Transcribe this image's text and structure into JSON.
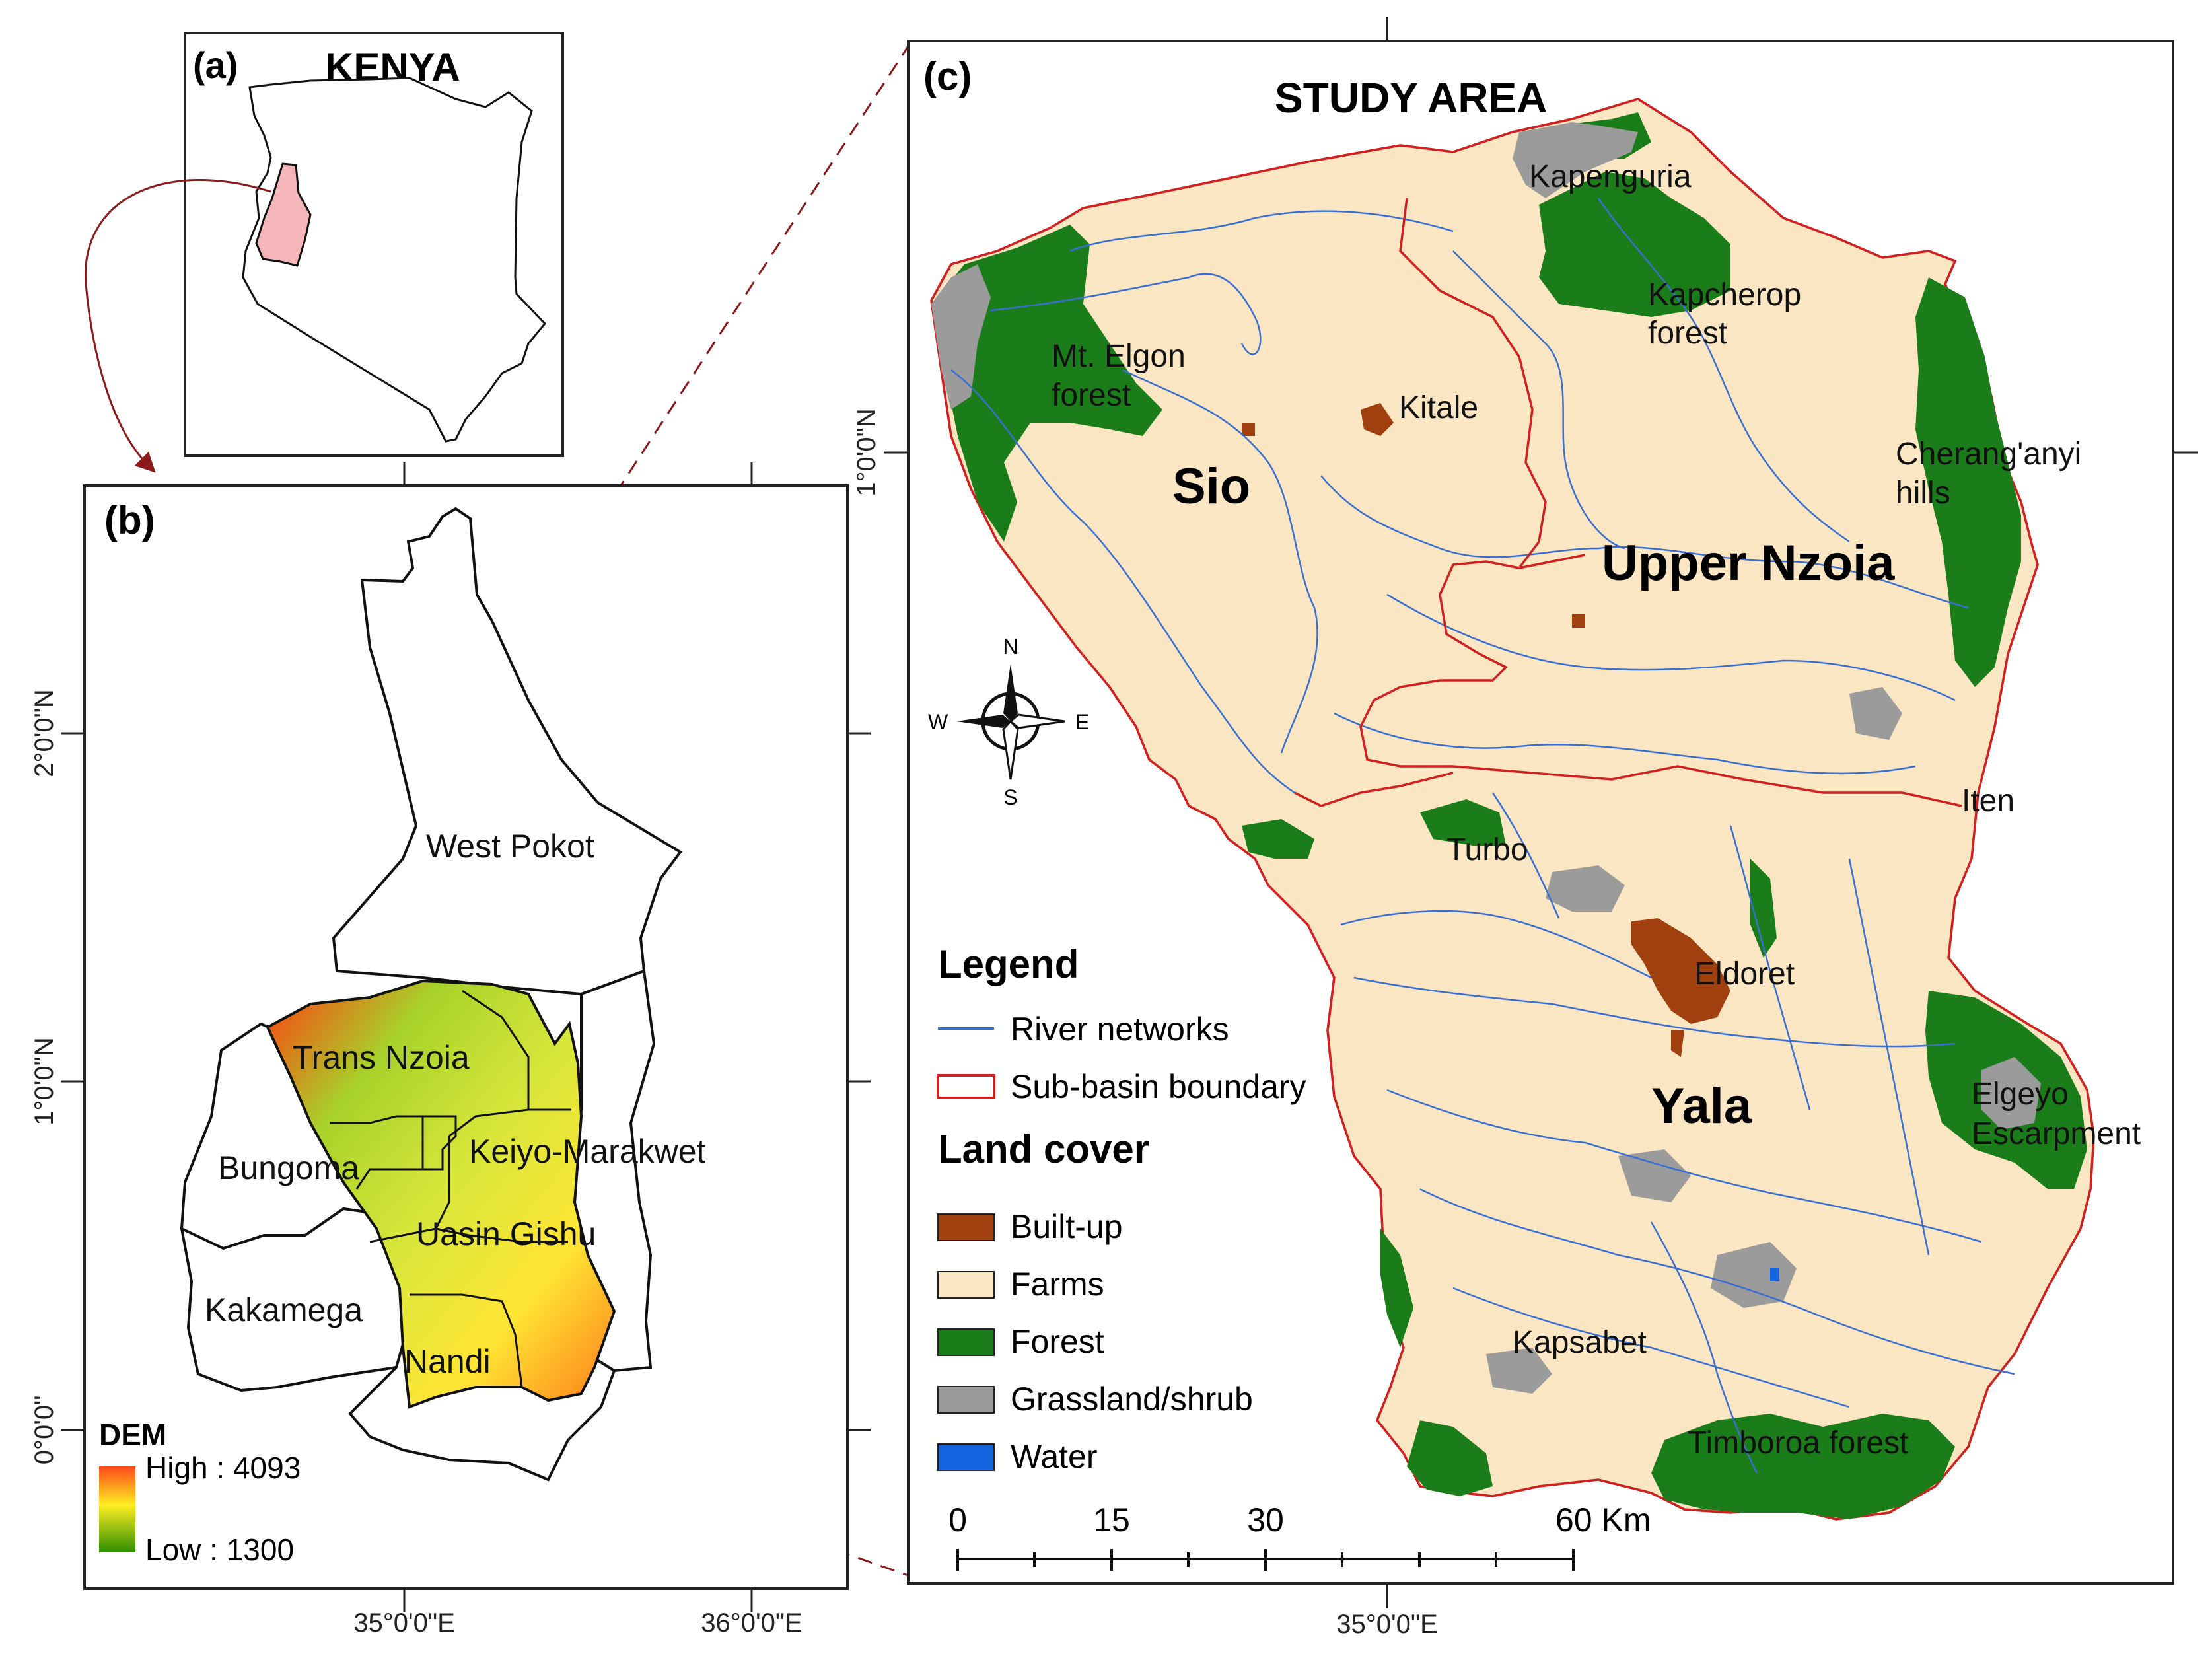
{
  "panel_a": {
    "letter": "(a)",
    "title": "KENYA"
  },
  "panel_b": {
    "letter": "(b)",
    "counties": [
      "West Pokot",
      "Trans Nzoia",
      "Bungoma",
      "Keiyo-Marakwet",
      "Uasin Gishu",
      "Kakamega",
      "Nandi"
    ],
    "dem_title": "DEM",
    "dem_high": "High : 4093",
    "dem_low": "Low : 1300",
    "lat_labels": [
      "2°0'0\"N",
      "1°0'0\"N",
      "0°0'0\""
    ],
    "lon_labels": [
      "35°0'0\"E",
      "36°0'0\"E"
    ]
  },
  "panel_c": {
    "letter": "(c)",
    "title": "STUDY AREA",
    "subbasins": [
      "Sio",
      "Upper Nzoia",
      "Yala"
    ],
    "places": [
      "Kapenguria",
      "Kapcherop",
      "forest",
      "Mt. Elgon",
      "forest",
      "Kitale",
      "Cherang'anyi",
      "hills",
      "Iten",
      "Turbo",
      "Eldoret",
      "Elgeyo",
      "Escarpment",
      "Kapsabet",
      "Timboroa forest"
    ],
    "compass": [
      "N",
      "E",
      "S",
      "W"
    ],
    "legend_title": "Legend",
    "legend_lines": [
      "River networks",
      "Sub-basin boundary"
    ],
    "landcover_title": "Land cover",
    "landcover": [
      {
        "label": "Built-up",
        "color": "#a0400f"
      },
      {
        "label": "Farms",
        "color": "#fae6c3"
      },
      {
        "label": "Forest",
        "color": "#1a7d1a"
      },
      {
        "label": "Grassland/shrub",
        "color": "#9b9b9b"
      },
      {
        "label": "Water",
        "color": "#1565e0"
      }
    ],
    "scale_ticks": [
      "0",
      "15",
      "30",
      "60 Km"
    ],
    "lat_label": "1°0'0\"N",
    "lon_label": "35°0'0\"E"
  },
  "colors": {
    "farms": "#fae6c3",
    "forest": "#1a7d1a",
    "grass": "#9b9b9b",
    "builtup": "#a0400f",
    "river": "#3a6fd0",
    "boundary": "#d02020",
    "kenya_highlight": "#f4b6b8",
    "connector": "#8b1a1a"
  }
}
